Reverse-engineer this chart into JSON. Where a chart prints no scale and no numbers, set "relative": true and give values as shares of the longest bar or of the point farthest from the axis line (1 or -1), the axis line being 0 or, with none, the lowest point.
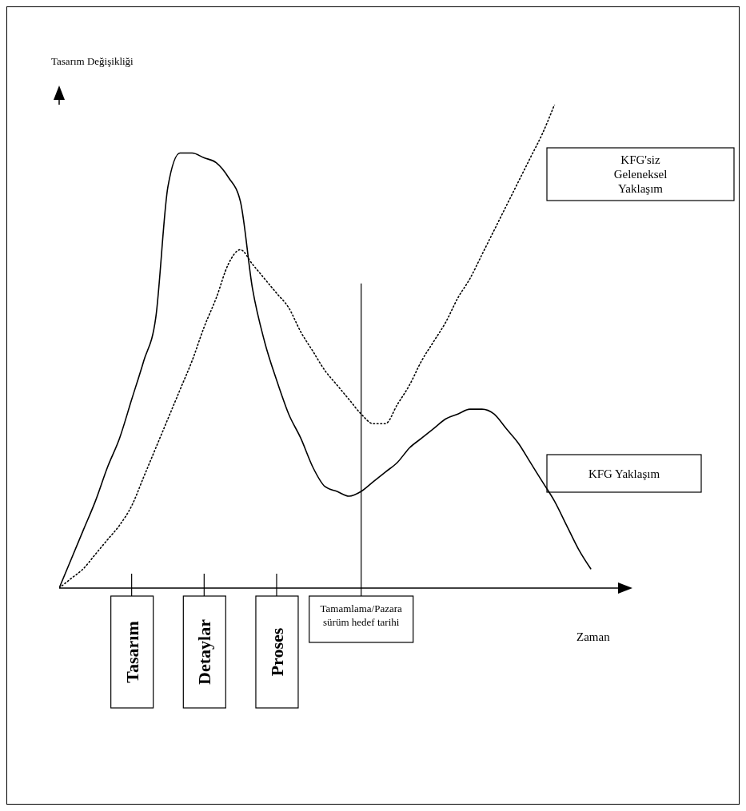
{
  "chart_data": {
    "type": "line",
    "relative": true,
    "ylabel": "Tasarım Değişikliği",
    "xlabel": "Zaman",
    "categories": [
      null,
      null,
      null,
      null,
      null,
      null,
      "Tasarım",
      null,
      null,
      null,
      null,
      null,
      "Detaylar",
      null,
      null,
      null,
      null,
      null,
      "Proses",
      null,
      null,
      null,
      null,
      null,
      null,
      "Tamamlama/Pazara sürüm hedef tarihi",
      null,
      null,
      null,
      null,
      null,
      null,
      null,
      null,
      null,
      null,
      null,
      null,
      null,
      null,
      null,
      null,
      null,
      null,
      null,
      null,
      null
    ],
    "series": [
      {
        "name": "KFG Yaklaşım",
        "color": "#000000",
        "line_style": "solid",
        "values": [
          0,
          0.06,
          0.12,
          0.18,
          0.25,
          0.31,
          0.39,
          0.47,
          0.56,
          0.83,
          0.9,
          0.9,
          0.89,
          0.88,
          0.85,
          0.8,
          0.62,
          0.51,
          0.43,
          0.36,
          0.31,
          0.25,
          0.21,
          0.2,
          0.19,
          0.2,
          0.22,
          0.24,
          0.26,
          0.29,
          0.31,
          0.33,
          0.35,
          0.36,
          0.37,
          0.37,
          0.36,
          0.33,
          0.3,
          0.26,
          0.22,
          0.18,
          0.13,
          0.08,
          0.04,
          null,
          null
        ]
      },
      {
        "name": "KFG'siz Geleneksel Yaklaşım",
        "color": "#000000",
        "line_style": "dotted",
        "values": [
          0,
          0.02,
          0.04,
          0.07,
          0.1,
          0.13,
          0.17,
          0.23,
          0.29,
          0.35,
          0.41,
          0.47,
          0.54,
          0.6,
          0.67,
          0.7,
          0.67,
          0.64,
          0.61,
          0.58,
          0.53,
          0.49,
          0.45,
          0.42,
          0.39,
          0.36,
          0.34,
          0.34,
          0.38,
          0.42,
          0.47,
          0.51,
          0.55,
          0.6,
          0.64,
          0.69,
          0.74,
          0.79,
          0.84,
          0.89,
          0.94,
          1,
          null,
          null,
          null,
          null,
          null
        ]
      }
    ],
    "ref_lines": [
      {
        "axis": "x",
        "value": "Tamamlama/Pazara sürüm hedef tarihi",
        "color": "#000000"
      }
    ],
    "legend": false,
    "grid": false
  }
}
